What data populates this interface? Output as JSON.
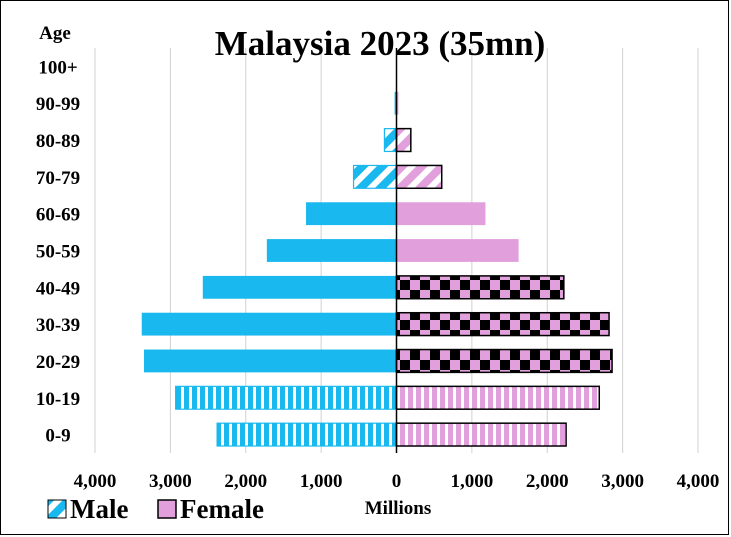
{
  "chart_data": {
    "type": "bar",
    "orientation": "horizontal",
    "subtype": "population-pyramid",
    "title": "Malaysia  2023 (35mn)",
    "ylabel": "Age",
    "xlabel": "Millions",
    "xlim": [
      -4000,
      4000
    ],
    "xticks": [
      -4000,
      -3000,
      -2000,
      -1000,
      0,
      1000,
      2000,
      3000,
      4000
    ],
    "xtick_labels": [
      "4,000",
      "3,000",
      "2,000",
      "1,000",
      "0",
      "1,000",
      "2,000",
      "3,000",
      "4,000"
    ],
    "grid": "vertical",
    "legend_position": "bottom-left",
    "categories": [
      "100+",
      "90-99",
      "80-89",
      "70-79",
      "60-69",
      "50-59",
      "40-49",
      "30-39",
      "20-29",
      "10-19",
      "0-9"
    ],
    "series": [
      {
        "name": "Male",
        "color": "#19B8EE",
        "values": [
          5,
          25,
          160,
          570,
          1200,
          1720,
          2570,
          3380,
          3350,
          2930,
          2380
        ],
        "patterns": [
          "solid",
          "solid",
          "diagonal",
          "diagonal",
          "solid",
          "solid",
          "solid",
          "solid",
          "solid",
          "vertical-stripes",
          "vertical-stripes"
        ]
      },
      {
        "name": "Female",
        "color": "#E19FDC",
        "values": [
          5,
          25,
          190,
          600,
          1180,
          1620,
          2220,
          2820,
          2860,
          2690,
          2250
        ],
        "patterns": [
          "solid",
          "solid",
          "diagonal",
          "diagonal",
          "solid",
          "solid",
          "checker",
          "checker",
          "checker",
          "vertical-stripes",
          "vertical-stripes"
        ]
      }
    ]
  }
}
